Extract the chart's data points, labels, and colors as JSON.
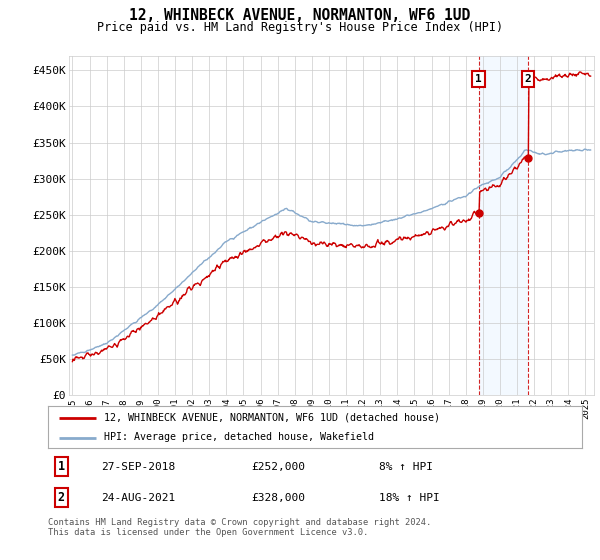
{
  "title": "12, WHINBECK AVENUE, NORMANTON, WF6 1UD",
  "subtitle": "Price paid vs. HM Land Registry's House Price Index (HPI)",
  "ytick_values": [
    0,
    50000,
    100000,
    150000,
    200000,
    250000,
    300000,
    350000,
    400000,
    450000
  ],
  "ylim": [
    0,
    470000
  ],
  "xlim_start": 1994.8,
  "xlim_end": 2025.5,
  "xtick_years": [
    1995,
    1996,
    1997,
    1998,
    1999,
    2000,
    2001,
    2002,
    2003,
    2004,
    2005,
    2006,
    2007,
    2008,
    2009,
    2010,
    2011,
    2012,
    2013,
    2014,
    2015,
    2016,
    2017,
    2018,
    2019,
    2020,
    2021,
    2022,
    2023,
    2024,
    2025
  ],
  "sale1_x": 2018.75,
  "sale1_y": 252000,
  "sale1_date": "27-SEP-2018",
  "sale1_price": "£252,000",
  "sale1_hpi": "8% ↑ HPI",
  "sale2_x": 2021.65,
  "sale2_y": 328000,
  "sale2_date": "24-AUG-2021",
  "sale2_price": "£328,000",
  "sale2_hpi": "18% ↑ HPI",
  "legend_line1": "12, WHINBECK AVENUE, NORMANTON, WF6 1UD (detached house)",
  "legend_line2": "HPI: Average price, detached house, Wakefield",
  "footer": "Contains HM Land Registry data © Crown copyright and database right 2024.\nThis data is licensed under the Open Government Licence v3.0.",
  "line_color_red": "#cc0000",
  "line_color_blue": "#88aacc",
  "shade_color": "#ddeeff",
  "grid_color": "#cccccc",
  "background_color": "#ffffff"
}
